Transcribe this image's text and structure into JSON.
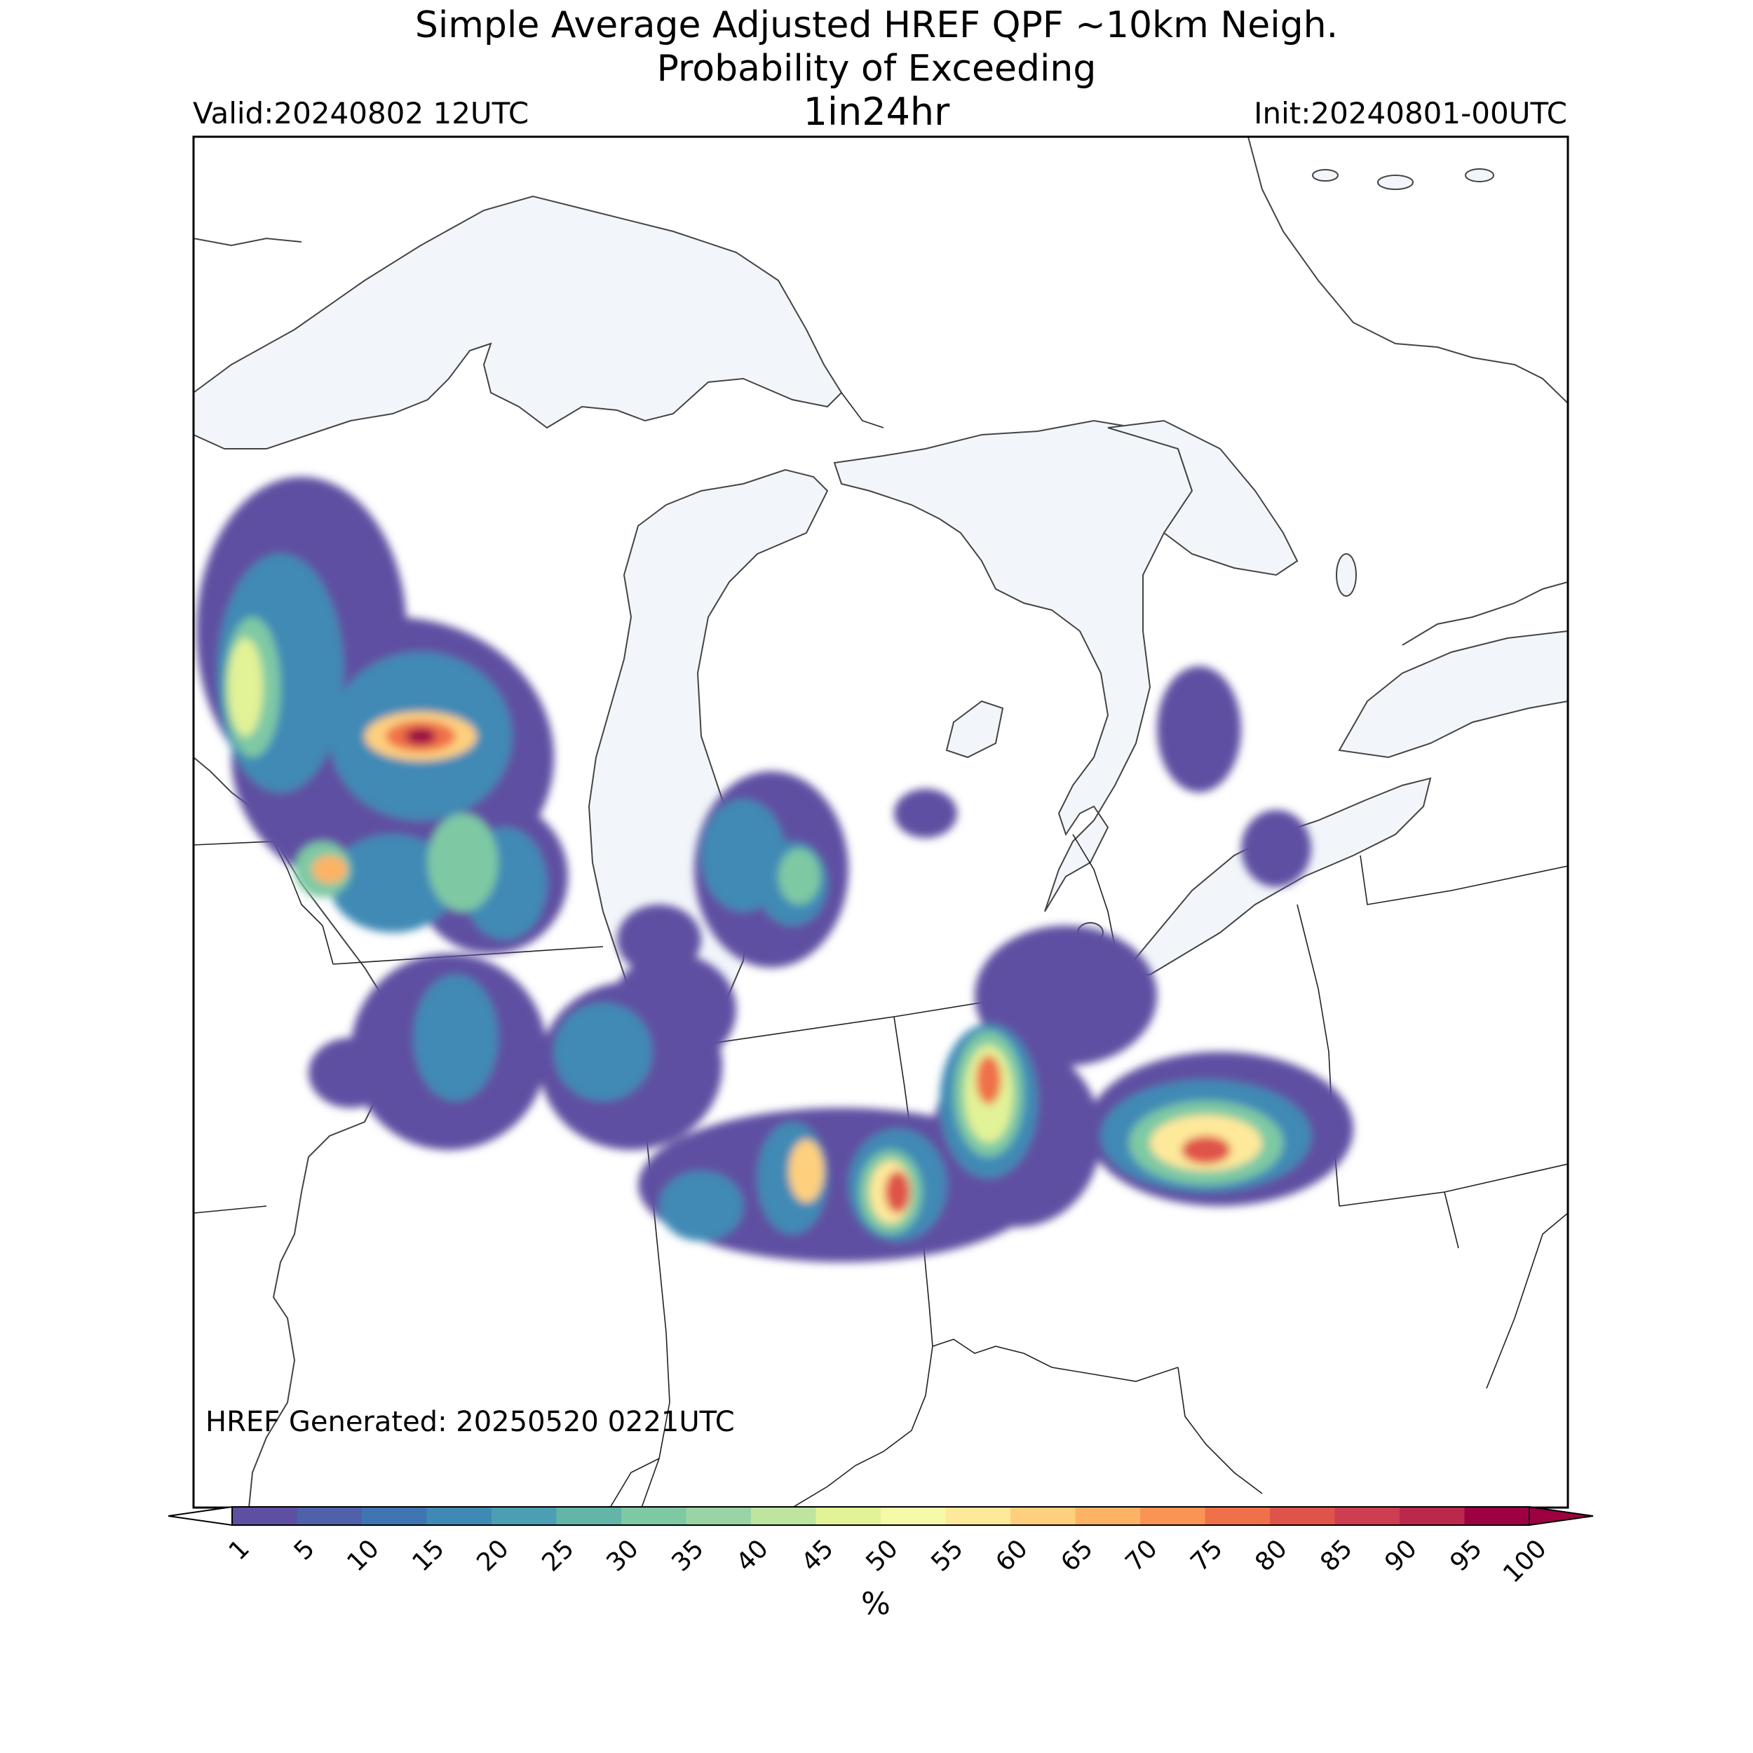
{
  "title": {
    "line1": "Simple Average Adjusted HREF QPF ~10km Neigh.",
    "line2": "Probability of Exceeding",
    "line3": "1in24hr"
  },
  "valid_label": "Valid:20240802 12UTC",
  "init_label": "Init:20240801-00UTC",
  "generated_label": "HREF Generated: 20250520 0221UTC",
  "colorbar": {
    "unit_label": "%",
    "ticks": [
      "1",
      "5",
      "10",
      "15",
      "20",
      "25",
      "30",
      "35",
      "40",
      "45",
      "50",
      "55",
      "60",
      "65",
      "70",
      "75",
      "80",
      "85",
      "90",
      "95",
      "100"
    ],
    "colors": [
      "#5e4fa2",
      "#4f61aa",
      "#3f75b2",
      "#3f8ab5",
      "#4c9eb2",
      "#63b5a8",
      "#7ec9a4",
      "#9bd4a4",
      "#bde5a0",
      "#e2f297",
      "#f5f9a8",
      "#fee99a",
      "#fed07e",
      "#fdb365",
      "#f99455",
      "#f0704a",
      "#e0534a",
      "#cd3f50",
      "#ba294c",
      "#9e0142"
    ],
    "extend": "both"
  },
  "map_style": {
    "lake_fill": "#f2f6fb",
    "coastline": "#444444",
    "state_border": "#222222"
  }
}
